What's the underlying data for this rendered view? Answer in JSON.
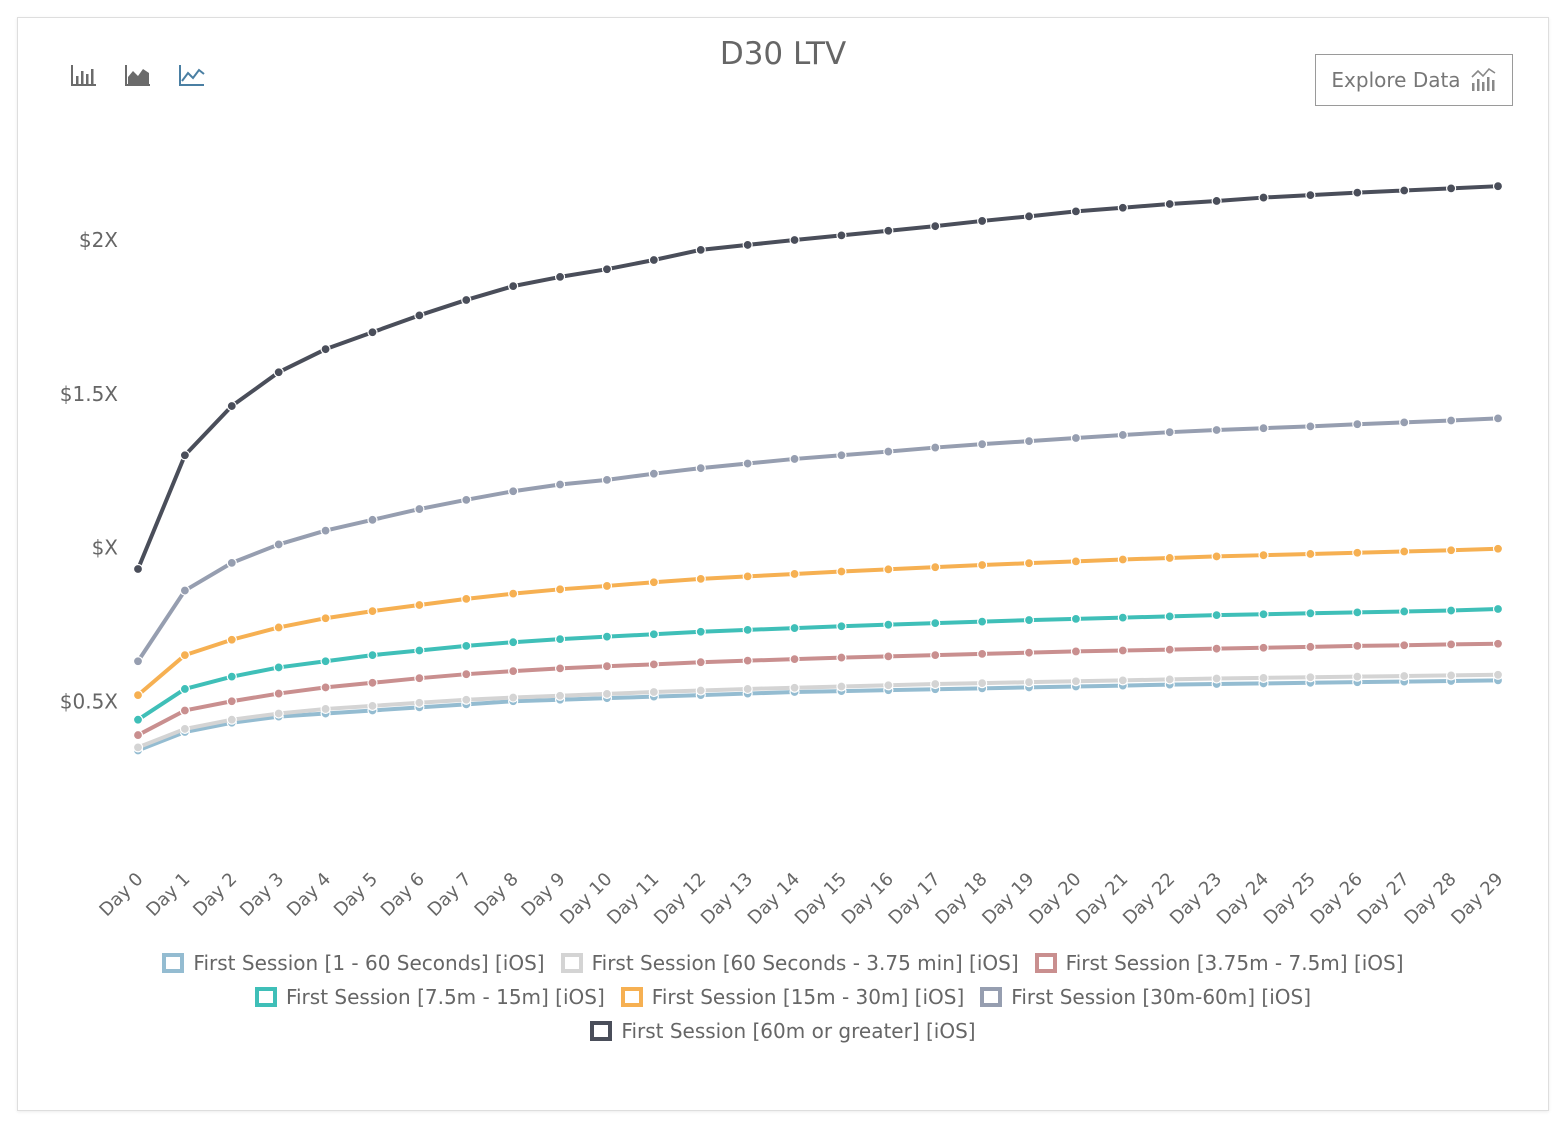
{
  "header": {
    "title": "D30 LTV",
    "explore_label": "Explore Data",
    "chart_type_buttons": [
      {
        "name": "bar-chart-icon",
        "active": false
      },
      {
        "name": "area-chart-icon",
        "active": false
      },
      {
        "name": "line-chart-icon",
        "active": true
      }
    ]
  },
  "colors": {
    "active_icon": "#4a7fa3",
    "inactive_icon": "#6b6b6b"
  },
  "chart_data": {
    "type": "line",
    "title": "D30 LTV",
    "xlabel": "",
    "ylabel": "",
    "x": [
      "Day 0",
      "Day 1",
      "Day 2",
      "Day 3",
      "Day 4",
      "Day 5",
      "Day 6",
      "Day 7",
      "Day 8",
      "Day 9",
      "Day 10",
      "Day 11",
      "Day 12",
      "Day 13",
      "Day 14",
      "Day 15",
      "Day 16",
      "Day 17",
      "Day 18",
      "Day 19",
      "Day 20",
      "Day 21",
      "Day 22",
      "Day 23",
      "Day 24",
      "Day 25",
      "Day 26",
      "Day 27",
      "Day 28",
      "Day 29"
    ],
    "y_ticks": [
      {
        "label": "$0.5X",
        "value": 0.5
      },
      {
        "label": "$X",
        "value": 1.0
      },
      {
        "label": "$1.5X",
        "value": 1.5
      },
      {
        "label": "$2X",
        "value": 2.0
      }
    ],
    "ylim": [
      0,
      2.3
    ],
    "grid": false,
    "legend_position": "bottom",
    "series": [
      {
        "name": "First Session [1 - 60 Seconds] [iOS]",
        "color": "#94bcd1",
        "values": [
          0.34,
          0.4,
          0.43,
          0.45,
          0.46,
          0.47,
          0.48,
          0.49,
          0.5,
          0.505,
          0.51,
          0.515,
          0.52,
          0.525,
          0.53,
          0.533,
          0.536,
          0.539,
          0.542,
          0.545,
          0.548,
          0.551,
          0.554,
          0.556,
          0.558,
          0.56,
          0.562,
          0.564,
          0.566,
          0.568
        ]
      },
      {
        "name": "First Session [60 Seconds - 3.75 min] [iOS]",
        "color": "#d4d4d4",
        "values": [
          0.35,
          0.41,
          0.44,
          0.46,
          0.475,
          0.485,
          0.495,
          0.505,
          0.512,
          0.518,
          0.524,
          0.53,
          0.535,
          0.54,
          0.544,
          0.548,
          0.552,
          0.556,
          0.559,
          0.562,
          0.565,
          0.568,
          0.571,
          0.574,
          0.576,
          0.578,
          0.58,
          0.582,
          0.584,
          0.586
        ]
      },
      {
        "name": "First Session [3.75m - 7.5m] [iOS]",
        "color": "#c98f8f",
        "values": [
          0.39,
          0.47,
          0.5,
          0.525,
          0.545,
          0.56,
          0.575,
          0.588,
          0.598,
          0.607,
          0.614,
          0.62,
          0.627,
          0.632,
          0.637,
          0.642,
          0.646,
          0.65,
          0.654,
          0.658,
          0.662,
          0.665,
          0.668,
          0.671,
          0.674,
          0.677,
          0.68,
          0.682,
          0.685,
          0.687
        ]
      },
      {
        "name": "First Session [7.5m - 15m] [iOS]",
        "color": "#3fbfb8",
        "values": [
          0.44,
          0.54,
          0.58,
          0.61,
          0.63,
          0.65,
          0.665,
          0.68,
          0.692,
          0.702,
          0.71,
          0.718,
          0.726,
          0.732,
          0.738,
          0.744,
          0.749,
          0.754,
          0.759,
          0.764,
          0.768,
          0.772,
          0.776,
          0.78,
          0.783,
          0.786,
          0.789,
          0.792,
          0.795,
          0.8
        ]
      },
      {
        "name": "First Session [15m - 30m] [iOS]",
        "color": "#f6b052",
        "values": [
          0.52,
          0.65,
          0.7,
          0.74,
          0.77,
          0.793,
          0.813,
          0.833,
          0.85,
          0.864,
          0.875,
          0.887,
          0.898,
          0.906,
          0.914,
          0.922,
          0.929,
          0.936,
          0.943,
          0.949,
          0.955,
          0.961,
          0.966,
          0.971,
          0.975,
          0.979,
          0.983,
          0.987,
          0.991,
          0.996
        ]
      },
      {
        "name": "First Session [30m-60m] [iOS]",
        "color": "#969eb0",
        "values": [
          0.63,
          0.86,
          0.95,
          1.01,
          1.055,
          1.09,
          1.125,
          1.155,
          1.183,
          1.205,
          1.22,
          1.24,
          1.258,
          1.273,
          1.288,
          1.3,
          1.312,
          1.325,
          1.336,
          1.346,
          1.356,
          1.366,
          1.375,
          1.382,
          1.388,
          1.394,
          1.401,
          1.407,
          1.413,
          1.42
        ]
      },
      {
        "name": "First Session [60m or greater] [iOS]",
        "color": "#4a4e5a",
        "values": [
          0.93,
          1.3,
          1.46,
          1.57,
          1.645,
          1.7,
          1.755,
          1.805,
          1.85,
          1.88,
          1.905,
          1.935,
          1.968,
          1.984,
          2.0,
          2.015,
          2.03,
          2.045,
          2.062,
          2.077,
          2.093,
          2.105,
          2.117,
          2.127,
          2.138,
          2.146,
          2.154,
          2.161,
          2.168,
          2.175
        ]
      }
    ]
  }
}
